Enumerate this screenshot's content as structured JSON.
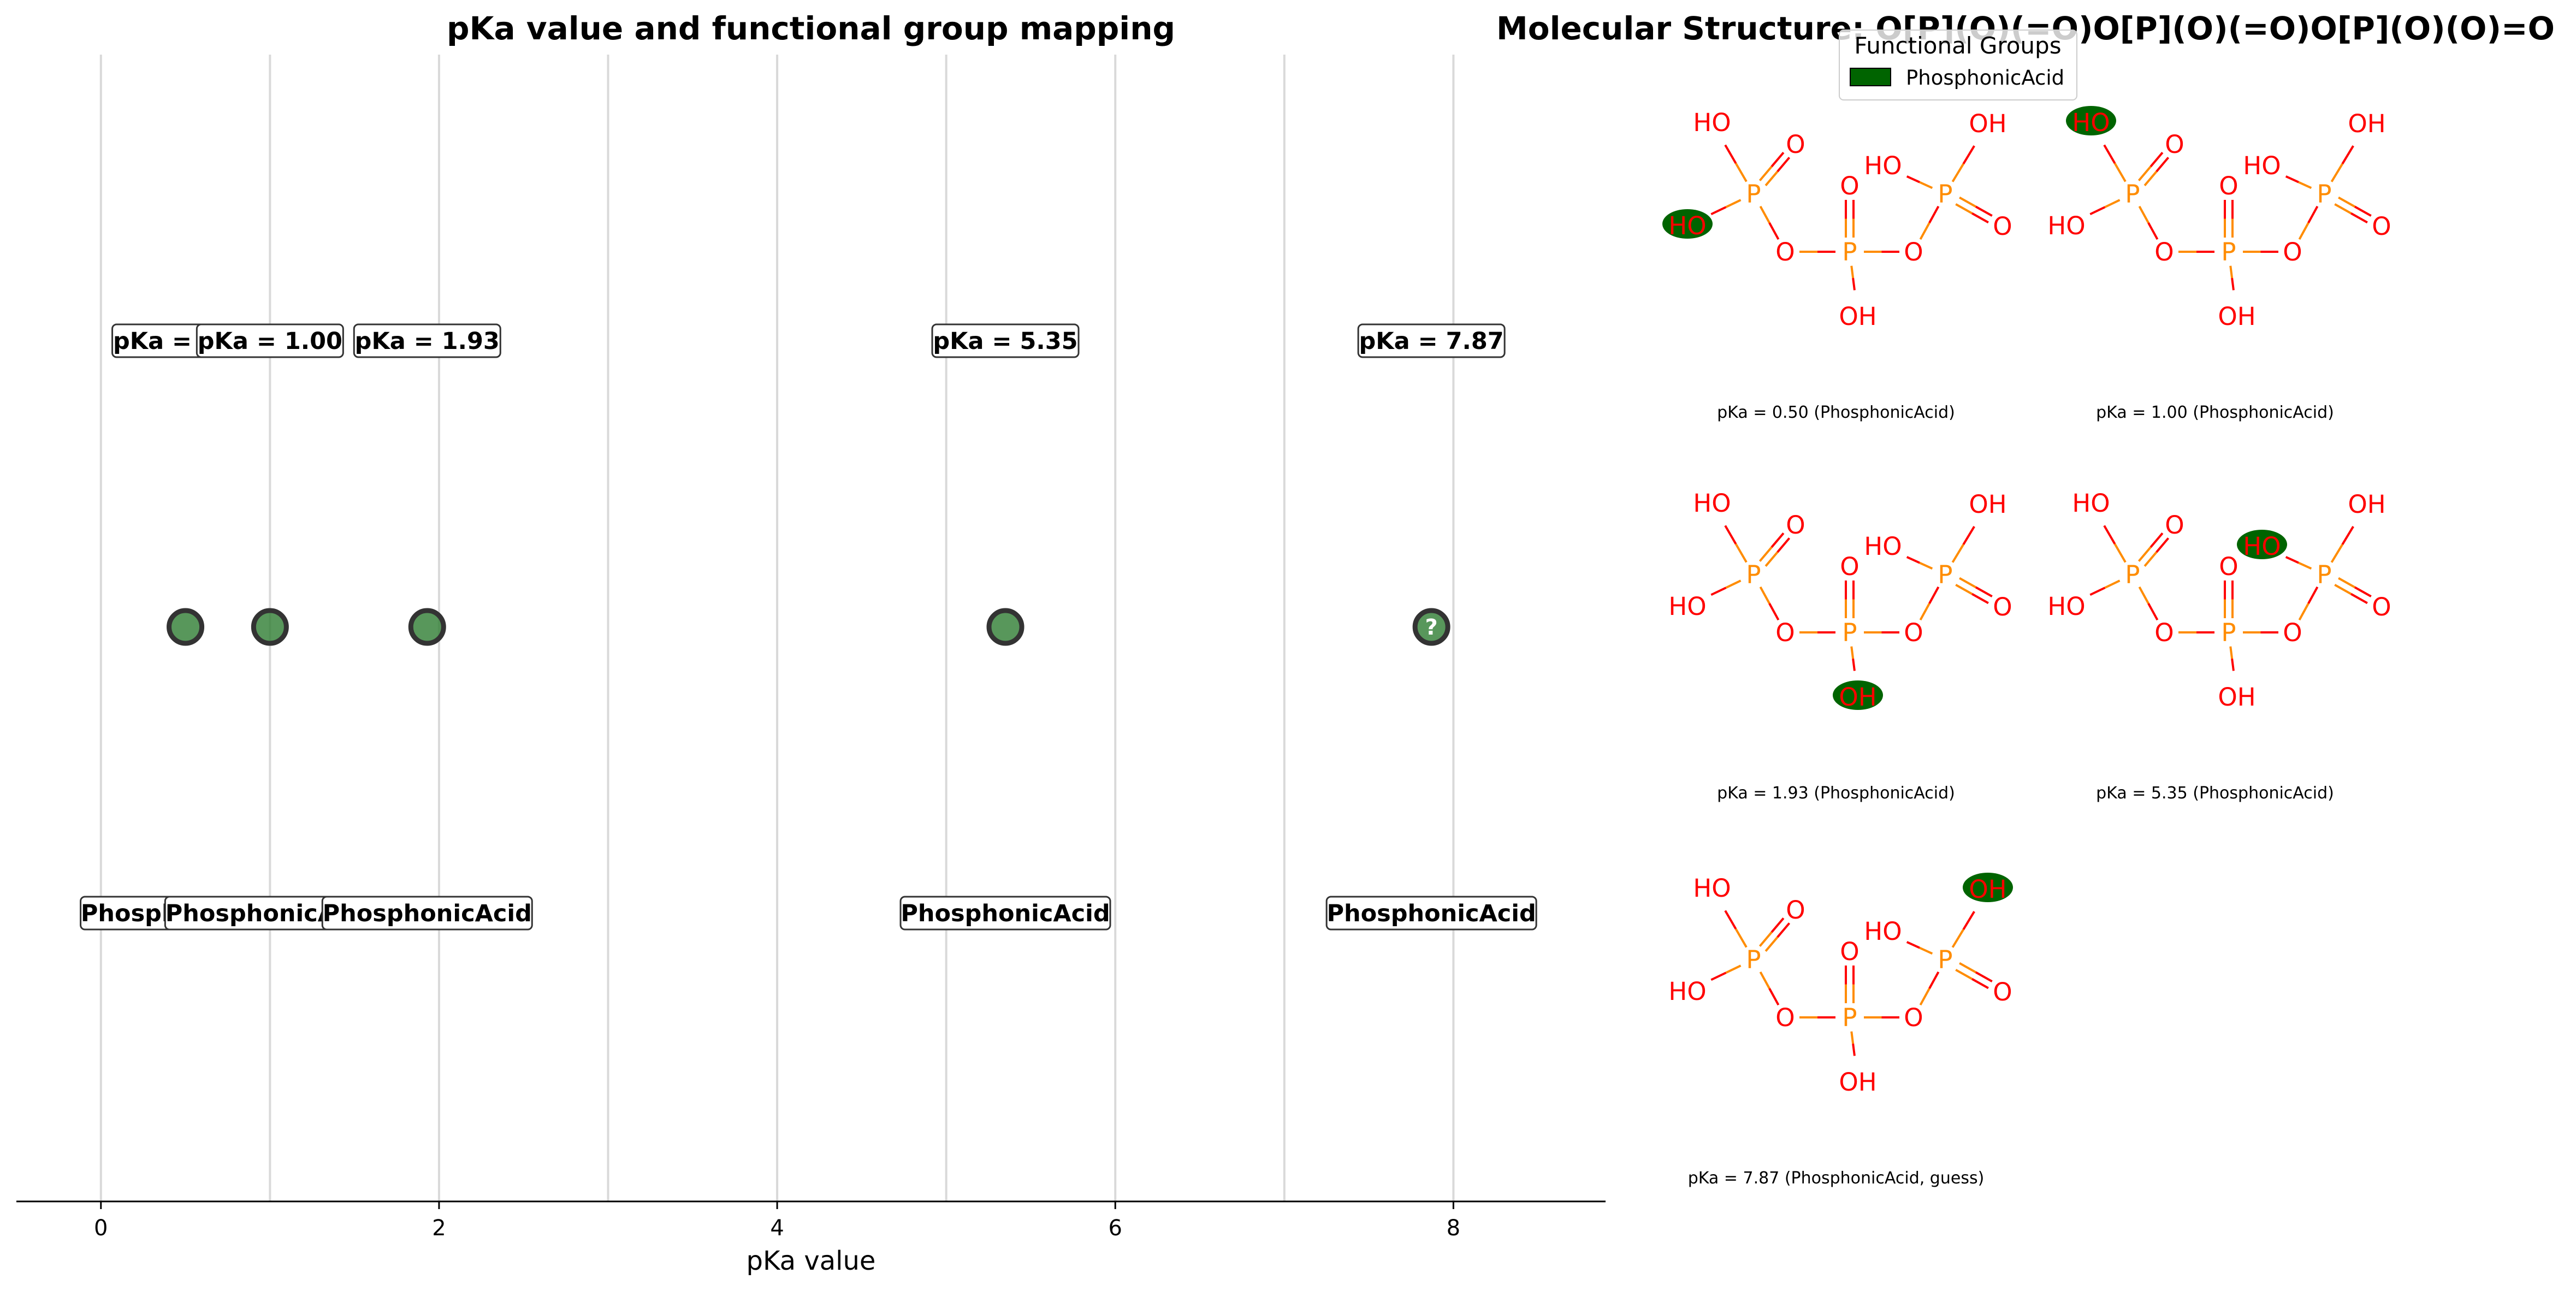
{
  "chart_data": [
    {
      "type": "scatter",
      "title": "pKa value and functional group mapping",
      "xlabel": "pKa value",
      "ylabel": "",
      "xlim": [
        -0.5,
        8.9
      ],
      "xticks": [
        0,
        2,
        4,
        6,
        8
      ],
      "grid_x": [
        0,
        1,
        2,
        3,
        4,
        5,
        6,
        7,
        8
      ],
      "grid": "vertical",
      "point_color": "#2e7d32",
      "points": [
        {
          "x": 0.5,
          "pka_label": "pKa = 0.50",
          "group": "PhosphonicAcid",
          "guess": false
        },
        {
          "x": 1.0,
          "pka_label": "pKa = 1.00",
          "group": "PhosphonicAcid",
          "guess": false
        },
        {
          "x": 1.93,
          "pka_label": "pKa = 1.93",
          "group": "PhosphonicAcid",
          "guess": false
        },
        {
          "x": 5.35,
          "pka_label": "pKa = 5.35",
          "group": "PhosphonicAcid",
          "guess": false
        },
        {
          "x": 7.87,
          "pka_label": "pKa = 7.87",
          "group": "PhosphonicAcid",
          "guess": true,
          "marker": "?"
        }
      ]
    }
  ],
  "molecule_panel": {
    "title": "Molecular Structure: O[P](O)(=O)O[P](O)(=O)O[P](O)(O)=O",
    "legend_title": "Functional Groups",
    "legend_items": [
      {
        "label": "PhosphonicAcid",
        "color": "#006400"
      }
    ],
    "atom_color": "#ff0000",
    "phosphorus_color": "#ff8c00",
    "highlight_color": "#006400",
    "structures": [
      {
        "caption": "pKa = 0.50 (PhosphonicAcid)",
        "highlight": "left-ho"
      },
      {
        "caption": "pKa = 1.00 (PhosphonicAcid)",
        "highlight": "top-ho"
      },
      {
        "caption": "pKa = 1.93 (PhosphonicAcid)",
        "highlight": "mid-oh"
      },
      {
        "caption": "pKa = 5.35 (PhosphonicAcid)",
        "highlight": "right-ho"
      },
      {
        "caption": "pKa = 7.87 (PhosphonicAcid, guess)",
        "highlight": "right-oh"
      }
    ]
  }
}
